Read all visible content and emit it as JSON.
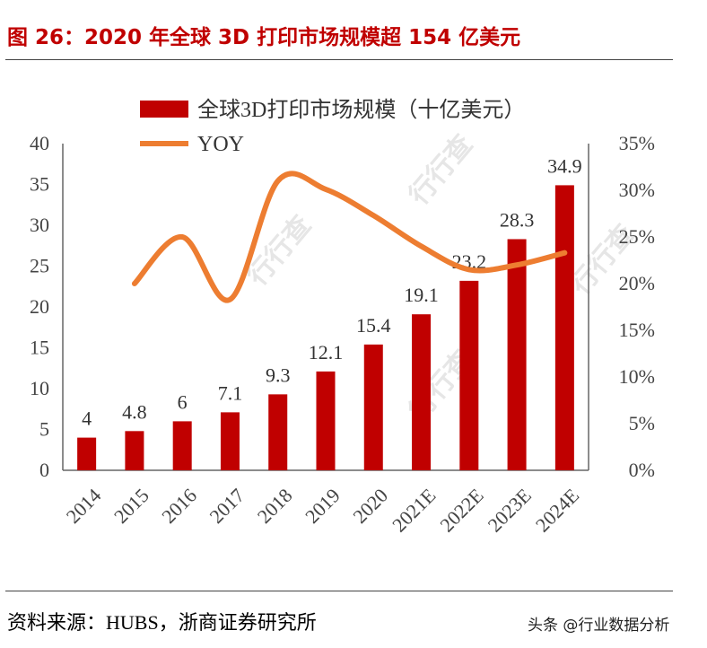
{
  "title": "图 26：2020 年全球 3D 打印市场规模超 154 亿美元",
  "source": {
    "label": "资料来源：",
    "text": "HUBS，浙商证券研究所"
  },
  "credit": "头条 @行业数据分析",
  "watermark": "行行查",
  "colors": {
    "bar": "#c00000",
    "line": "#ed7d31",
    "title": "#c00000",
    "axis": "#444444"
  },
  "chart_data": {
    "type": "bar",
    "title": "图 26：2020 年全球 3D 打印市场规模超 154 亿美元",
    "categories": [
      "2014",
      "2015",
      "2016",
      "2017",
      "2018",
      "2019",
      "2020",
      "2021E",
      "2022E",
      "2023E",
      "2024E"
    ],
    "series": [
      {
        "name": "全球3D打印市场规模（十亿美元）",
        "type": "bar",
        "axis": "left",
        "values": [
          4,
          4.8,
          6,
          7.1,
          9.3,
          12.1,
          15.4,
          19.1,
          23.2,
          28.3,
          34.9
        ],
        "labels": [
          "4",
          "4.8",
          "6",
          "7.1",
          "9.3",
          "12.1",
          "15.4",
          "19.1",
          "23.2",
          "28.3",
          "34.9"
        ]
      },
      {
        "name": "YOY",
        "type": "line",
        "axis": "right",
        "smooth": true,
        "values": [
          null,
          20,
          25,
          18.3,
          31.0,
          30.1,
          27.3,
          24.0,
          21.5,
          22.0,
          23.3
        ]
      }
    ],
    "y_left": {
      "min": 0,
      "max": 40,
      "ticks": [
        "0",
        "5",
        "10",
        "15",
        "20",
        "25",
        "30",
        "35",
        "40"
      ]
    },
    "y_right": {
      "min": 0,
      "max": 35,
      "ticks": [
        "0%",
        "5%",
        "10%",
        "15%",
        "20%",
        "25%",
        "30%",
        "35%"
      ]
    },
    "legend": {
      "position": "top",
      "entries": [
        "全球3D打印市场规模（十亿美元）",
        "YOY"
      ]
    },
    "grid": false
  }
}
